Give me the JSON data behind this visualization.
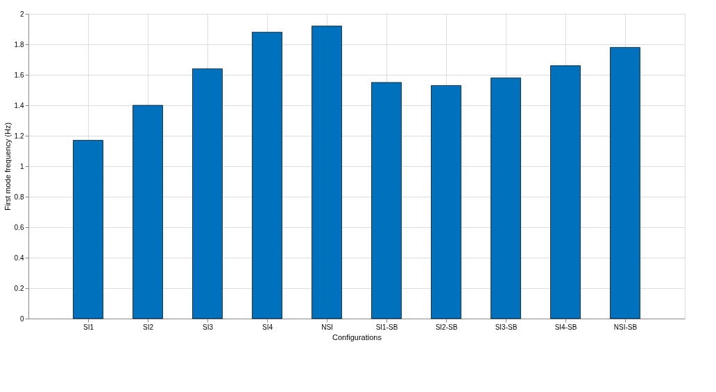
{
  "chart_data": {
    "type": "bar",
    "xlabel": "Configurations",
    "ylabel": "First mode frequency (Hz)",
    "categories": [
      "SI1",
      "SI2",
      "SI3",
      "SI4",
      "NSI",
      "SI1-SB",
      "SI2-SB",
      "SI3-SB",
      "SI4-SB",
      "NSI-SB"
    ],
    "values": [
      1.17,
      1.4,
      1.64,
      1.88,
      1.92,
      1.55,
      1.53,
      1.58,
      1.66,
      1.78
    ],
    "color": "#0072bd",
    "ylim": [
      0,
      2
    ],
    "yticks": [
      0,
      0.2,
      0.4,
      0.6,
      0.8,
      1,
      1.2,
      1.4,
      1.6,
      1.8,
      2
    ],
    "grid": true
  }
}
